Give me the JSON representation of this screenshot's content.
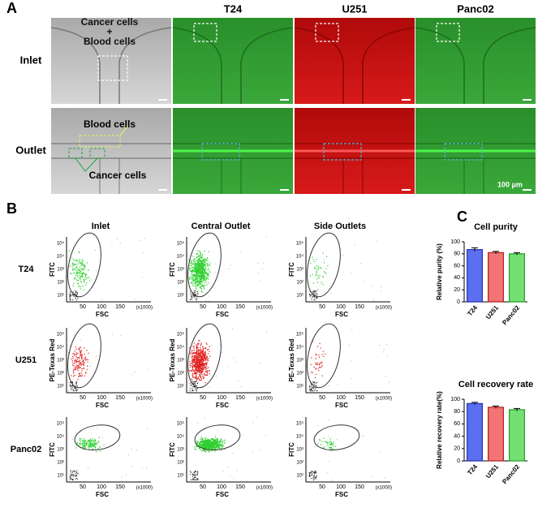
{
  "figure": {
    "panel_labels": [
      "A",
      "B",
      "C"
    ]
  },
  "panel_a": {
    "columns": [
      "T24",
      "U251",
      "Panc02"
    ],
    "rows": [
      "Inlet",
      "Outlet"
    ],
    "inlet_text": [
      "Cancer cells",
      "+",
      "Blood cells"
    ],
    "outlet_blood": "Blood cells",
    "outlet_cancer": "Cancer cells",
    "scale_bar": "100 μm"
  },
  "panel_b": {
    "columns": [
      "Inlet",
      "Central Outlet",
      "Side Outlets"
    ],
    "rows": [
      "T24",
      "U251",
      "Panc02"
    ],
    "y_labels": [
      "FITC",
      "PE-Texas Red",
      "FITC"
    ],
    "x_label": "FSC",
    "x_unit": "(x1000)",
    "xticks": [
      "50",
      "100",
      "150"
    ],
    "yticks": [
      "10¹",
      "10²",
      "10³",
      "10⁴",
      "10⁵"
    ]
  },
  "chart_data": [
    {
      "type": "bar",
      "title": "Cell purity",
      "y_label": "Relative purity (%)",
      "categories": [
        "T24",
        "U251",
        "Panc02"
      ],
      "values": [
        87,
        82,
        80
      ],
      "errors": [
        3,
        2,
        2
      ],
      "colors": [
        "#5c6ff0",
        "#f27474",
        "#74e074"
      ],
      "ylim": [
        0,
        100
      ],
      "yticks": [
        0,
        20,
        40,
        60,
        80,
        100
      ]
    },
    {
      "type": "bar",
      "title": "Cell recovery rate",
      "y_label": "Relative recovery rate(%)",
      "categories": [
        "T24",
        "U251",
        "Panc02"
      ],
      "values": [
        93,
        87,
        83
      ],
      "errors": [
        2,
        2,
        2
      ],
      "colors": [
        "#5c6ff0",
        "#f27474",
        "#74e074"
      ],
      "ylim": [
        0,
        100
      ],
      "yticks": [
        0,
        20,
        40,
        60,
        80,
        100
      ]
    }
  ]
}
